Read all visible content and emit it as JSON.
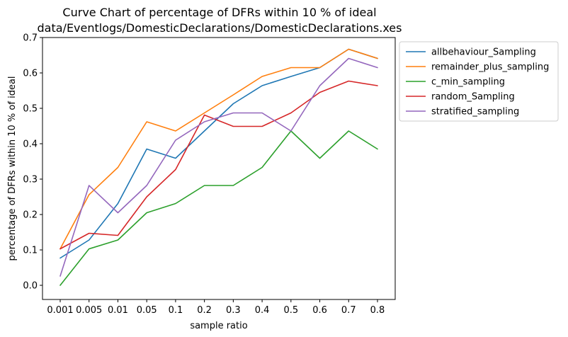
{
  "chart_data": {
    "type": "line",
    "title_line1": "Curve Chart of percentage of DFRs within 10 % of ideal",
    "title_line2": "data/Eventlogs/DomesticDeclarations/DomesticDeclarations.xes",
    "xlabel": "sample ratio",
    "ylabel": "percentage of DFRs within 10 % of ideal",
    "categories": [
      "0.001",
      "0.005",
      "0.01",
      "0.05",
      "0.1",
      "0.2",
      "0.3",
      "0.4",
      "0.5",
      "0.6",
      "0.7",
      "0.8"
    ],
    "ylim": [
      -0.04,
      0.7
    ],
    "yticks": [
      "0.0",
      "0.1",
      "0.2",
      "0.3",
      "0.4",
      "0.5",
      "0.6",
      "0.7"
    ],
    "legend_position": "outside-right-top",
    "grid": false,
    "series": [
      {
        "name": "allbehaviour_Sampling",
        "color": "#1f77b4",
        "values": [
          0.077,
          0.128,
          0.231,
          0.385,
          0.359,
          0.436,
          0.513,
          0.564,
          0.59,
          0.615,
          0.667,
          0.641
        ]
      },
      {
        "name": "remainder_plus_sampling",
        "color": "#ff7f0e",
        "values": [
          0.103,
          0.256,
          0.333,
          0.462,
          0.436,
          0.487,
          0.538,
          0.59,
          0.615,
          0.615,
          0.667,
          0.641
        ]
      },
      {
        "name": "c_min_sampling",
        "color": "#2ca02c",
        "values": [
          0.0,
          0.103,
          0.128,
          0.205,
          0.231,
          0.282,
          0.282,
          0.333,
          0.436,
          0.359,
          0.436,
          0.385
        ]
      },
      {
        "name": "random_Sampling",
        "color": "#d62728",
        "values": [
          0.103,
          0.147,
          0.141,
          0.25,
          0.327,
          0.481,
          0.449,
          0.449,
          0.487,
          0.545,
          0.577,
          0.564
        ]
      },
      {
        "name": "stratified_sampling",
        "color": "#9467bd",
        "values": [
          0.026,
          0.282,
          0.205,
          0.282,
          0.41,
          0.462,
          0.487,
          0.487,
          0.436,
          0.564,
          0.641,
          0.615
        ]
      }
    ]
  }
}
